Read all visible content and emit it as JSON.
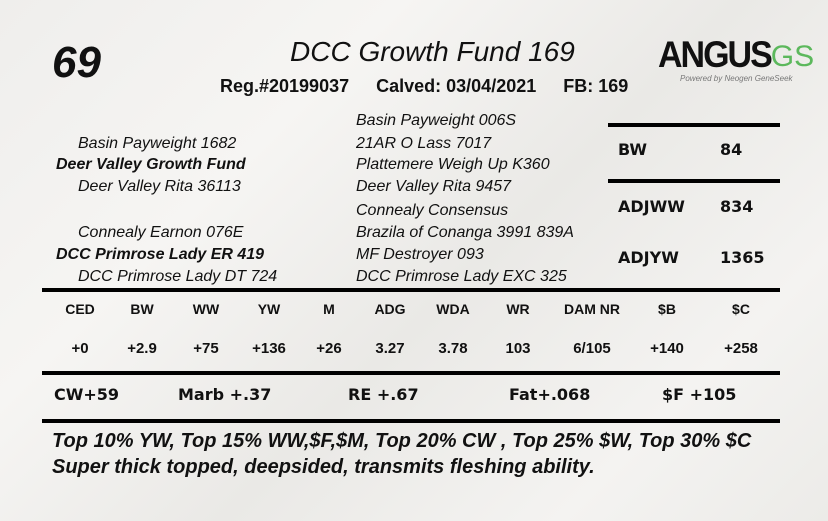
{
  "lot_number": "69",
  "animal_name": "DCC Growth Fund 169",
  "registration": "Reg.#20199037",
  "calved": "Calved: 03/04/2021",
  "fb": "FB: 169",
  "logo": {
    "text_main": "ANGUS",
    "text_accent": "GS",
    "tagline": "Powered by Neogen GeneSeek",
    "accent_color": "#5cb85c"
  },
  "pedigree": {
    "sire": "Deer Valley Growth Fund",
    "sire_sire": "Basin Payweight 1682",
    "sire_dam": "Deer Valley Rita 36113",
    "dam": "DCC Primrose Lady ER 419",
    "dam_sire": "Connealy Earnon 076E",
    "dam_dam": "DCC Primrose Lady DT 724",
    "ss_sire": "Basin Payweight 006S",
    "ss_dam": "21AR O Lass 7017",
    "sd_sire": "Plattemere Weigh Up K360",
    "sd_dam": "Deer Valley Rita 9457",
    "ds_sire": "Connealy Consensus",
    "ds_dam": "Brazila of Conanga 3991 839A",
    "dd_sire": "MF Destroyer 093",
    "dd_dam": "DCC Primrose Lady EXC 325"
  },
  "actuals": [
    {
      "label": "BW",
      "value": "84"
    },
    {
      "label": "ADJWW",
      "value": "834"
    },
    {
      "label": "ADJYW",
      "value": "1365"
    }
  ],
  "epds": {
    "headers": [
      "CED",
      "BW",
      "WW",
      "YW",
      "M",
      "ADG",
      "WDA",
      "WR",
      "DAM NR",
      "$B",
      "$C"
    ],
    "values": [
      "+0",
      "+2.9",
      "+75",
      "+136",
      "+26",
      "3.27",
      "3.78",
      "103",
      "6/105",
      "+140",
      "+258"
    ]
  },
  "carcass": [
    "CW+59",
    "Marb +.37",
    "RE +.67",
    "Fat+.068",
    "$F +105"
  ],
  "notes": {
    "line1": "Top 10% YW, Top 15% WW,$F,$M, Top 20% CW , Top 25% $W, Top 30% $C",
    "line2": "Super thick topped, deepsided, transmits fleshing ability."
  }
}
